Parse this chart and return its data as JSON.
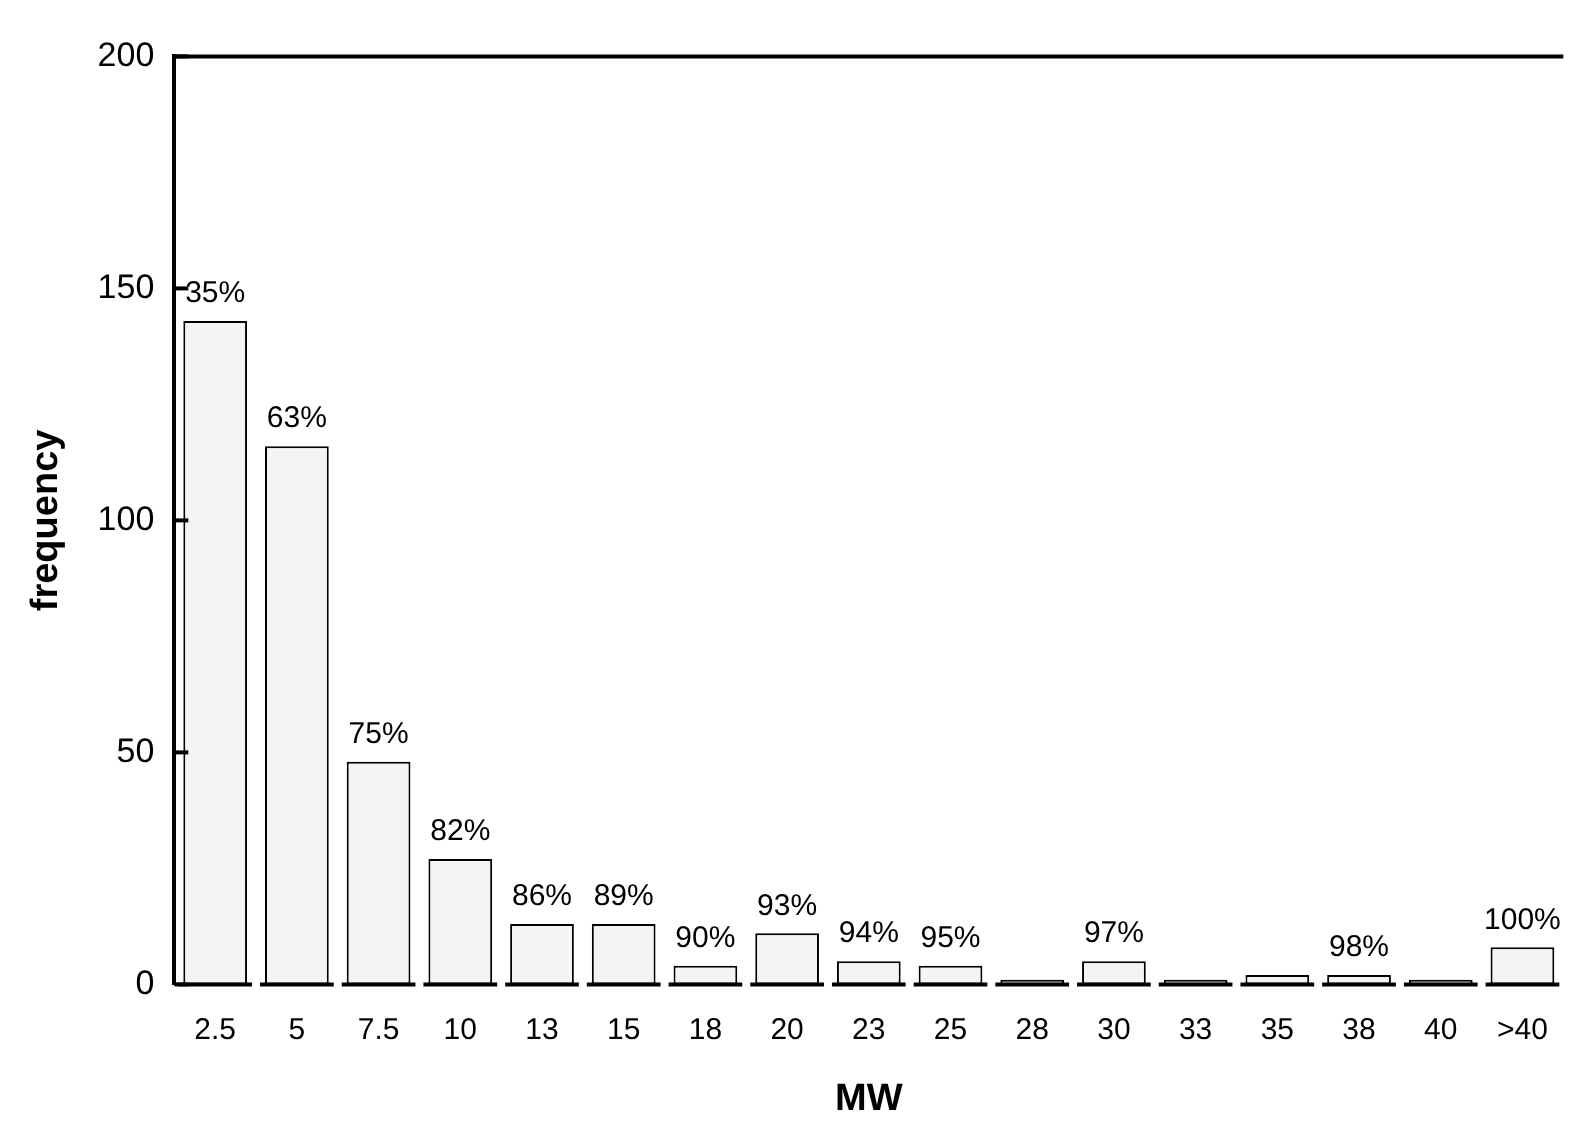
{
  "chart_data": {
    "type": "bar",
    "xlabel": "MW",
    "ylabel": "frequency",
    "categories": [
      "2.5",
      "5",
      "7.5",
      "10",
      "13",
      "15",
      "18",
      "20",
      "23",
      "25",
      "28",
      "30",
      "33",
      "35",
      "38",
      "40",
      ">40"
    ],
    "values": [
      143,
      116,
      48,
      27,
      13,
      13,
      4,
      11,
      5,
      4,
      1,
      5,
      1,
      2,
      2,
      1,
      8
    ],
    "color": "#f4f4f4",
    "annotations": [
      {
        "text": "35%",
        "x": "2.5",
        "y": 143
      },
      {
        "text": "63%",
        "x": "5",
        "y": 116
      },
      {
        "text": "75%",
        "x": "7.5",
        "y": 48
      },
      {
        "text": "82%",
        "x": "10",
        "y": 27
      },
      {
        "text": "86%",
        "x": "13",
        "y": 13
      },
      {
        "text": "89%",
        "x": "15",
        "y": 13
      },
      {
        "text": "90%",
        "x": "18",
        "y": 4
      },
      {
        "text": "93%",
        "x": "20",
        "y": 11
      },
      {
        "text": "94%",
        "x": "23",
        "y": 5
      },
      {
        "text": "95%",
        "x": "25",
        "y": 4
      },
      {
        "text": "97%",
        "x": "30",
        "y": 5
      },
      {
        "text": "98%",
        "x": "38",
        "y": 2
      },
      {
        "text": "100%",
        "x": ">40",
        "y": 8
      }
    ],
    "ylim": [
      0,
      200
    ],
    "yticks": [
      0,
      50,
      100,
      150,
      200
    ],
    "grid": false,
    "legend": false
  }
}
